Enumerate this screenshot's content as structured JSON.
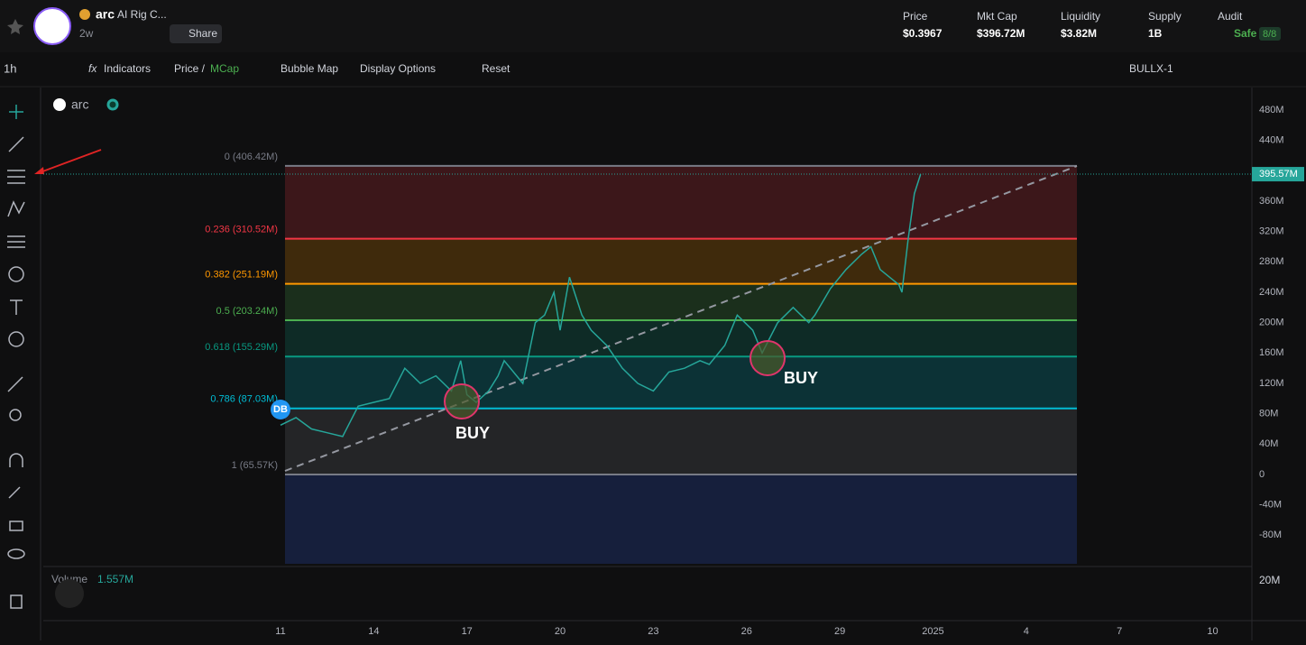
{
  "header": {
    "name": "arc",
    "fullname": "AI Rig C...",
    "age": "2w",
    "share": "Share",
    "stats": [
      {
        "label": "Price",
        "value": "$0.3967"
      },
      {
        "label": "Mkt Cap",
        "value": "$396.72M"
      },
      {
        "label": "Liquidity",
        "value": "$3.82M"
      },
      {
        "label": "Supply",
        "value": "1B"
      }
    ],
    "audit": {
      "label": "Audit",
      "status": "Safe",
      "score": "8/8"
    }
  },
  "toolbar": {
    "interval": "1h",
    "indicators": "Indicators",
    "price": "Price /",
    "mcap": "MCap",
    "bubble": "Bubble Map",
    "display": "Display Options",
    "reset": "Reset",
    "layout": "BULLX-1"
  },
  "chart": {
    "legend": "arc",
    "ylim": [
      -120,
      480
    ],
    "yticks": [
      {
        "value": 480,
        "label": "480M"
      },
      {
        "value": 440,
        "label": "440M"
      },
      {
        "value": 360,
        "label": "360M"
      },
      {
        "value": 320,
        "label": "320M"
      },
      {
        "value": 280,
        "label": "280M"
      },
      {
        "value": 240,
        "label": "240M"
      },
      {
        "value": 200,
        "label": "200M"
      },
      {
        "value": 160,
        "label": "160M"
      },
      {
        "value": 120,
        "label": "120M"
      },
      {
        "value": 80,
        "label": "80M"
      },
      {
        "value": 40,
        "label": "40M"
      },
      0,
      {
        "value": -40,
        "label": "-40M"
      },
      {
        "value": -80,
        "label": "-80M"
      }
    ],
    "current": {
      "value": 395.57,
      "label": "395.57M"
    },
    "xticks": [
      {
        "value": 0,
        "label": "11"
      },
      {
        "value": 3,
        "label": "14"
      },
      {
        "value": 6,
        "label": "17"
      },
      {
        "value": 9,
        "label": "20"
      },
      {
        "value": 12,
        "label": "23"
      },
      {
        "value": 15,
        "label": "26"
      },
      {
        "value": 18,
        "label": "29"
      },
      {
        "value": 21,
        "label": "2025"
      },
      {
        "value": 24,
        "label": "4"
      },
      {
        "value": 27,
        "label": "7"
      },
      {
        "value": 30,
        "label": "10"
      }
    ],
    "price": {
      "x": [
        0,
        0.5,
        1,
        1.5,
        2,
        2.5,
        3,
        3.5,
        4,
        4.5,
        5,
        5.5,
        5.8,
        6,
        6.3,
        6.7,
        7,
        7.2,
        7.8,
        8.2,
        8.5,
        8.8,
        9,
        9.3,
        9.7,
        10,
        10.5,
        11,
        11.5,
        12,
        12.5,
        13,
        13.5,
        13.8,
        14.3,
        14.7,
        15.2,
        15.5,
        16,
        16.5,
        17,
        17.2,
        17.7,
        18.2,
        18.7,
        19,
        19.3,
        19.6,
        19.9,
        20,
        20.2,
        20.4,
        20.6
      ],
      "values": [
        65,
        75,
        60,
        55,
        50,
        90,
        95,
        100,
        140,
        120,
        130,
        110,
        150,
        105,
        95,
        110,
        130,
        150,
        120,
        200,
        210,
        240,
        190,
        260,
        210,
        190,
        170,
        140,
        120,
        110,
        135,
        140,
        150,
        145,
        170,
        210,
        190,
        160,
        200,
        220,
        200,
        210,
        245,
        270,
        290,
        300,
        270,
        260,
        250,
        240,
        310,
        370,
        395.57
      ]
    },
    "fib": [
      {
        "label": "0 (406.42M)",
        "value": 406.42,
        "color": "#787b86"
      },
      {
        "label": "0.236 (310.52M)",
        "value": 310.52,
        "color": "#f23645"
      },
      {
        "label": "0.382 (251.19M)",
        "value": 251.19,
        "color": "#ff9800"
      },
      {
        "label": "0.5 (203.24M)",
        "value": 203.24,
        "color": "#4caf50"
      },
      {
        "label": "0.618 (155.29M)",
        "value": 155.29,
        "color": "#089981"
      },
      {
        "label": "0.786 (87.03M)",
        "value": 87.03,
        "color": "#00bcd4"
      },
      {
        "label": "1 (65.57K)",
        "value": 0.06557,
        "color": "#787b86"
      }
    ],
    "annotations": [
      "BUY",
      "BUY"
    ],
    "badge": "DB",
    "volume": {
      "label": "Volume",
      "value": "1.557M",
      "tick": "20M"
    }
  }
}
